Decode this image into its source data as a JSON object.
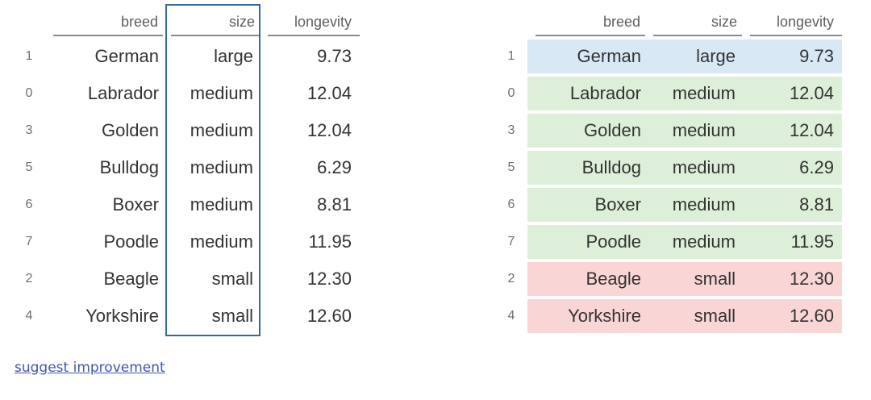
{
  "columns": [
    "breed",
    "size",
    "longevity"
  ],
  "index_header": "",
  "rows": [
    {
      "index": "1",
      "breed": "German",
      "size": "large",
      "longevity": "9.73"
    },
    {
      "index": "0",
      "breed": "Labrador",
      "size": "medium",
      "longevity": "12.04"
    },
    {
      "index": "3",
      "breed": "Golden",
      "size": "medium",
      "longevity": "12.04"
    },
    {
      "index": "5",
      "breed": "Bulldog",
      "size": "medium",
      "longevity": "6.29"
    },
    {
      "index": "6",
      "breed": "Boxer",
      "size": "medium",
      "longevity": "8.81"
    },
    {
      "index": "7",
      "breed": "Poodle",
      "size": "medium",
      "longevity": "11.95"
    },
    {
      "index": "2",
      "breed": "Beagle",
      "size": "small",
      "longevity": "12.30"
    },
    {
      "index": "4",
      "breed": "Yorkshire",
      "size": "small",
      "longevity": "12.60"
    }
  ],
  "row_colors": {
    "large": "#d8e8f4",
    "medium": "#ddefd8",
    "small": "#f9d5d6"
  },
  "selection_box": {
    "column": "size",
    "color": "#35699c"
  },
  "link": {
    "label": "suggest improvement",
    "color": "#4254b4"
  }
}
